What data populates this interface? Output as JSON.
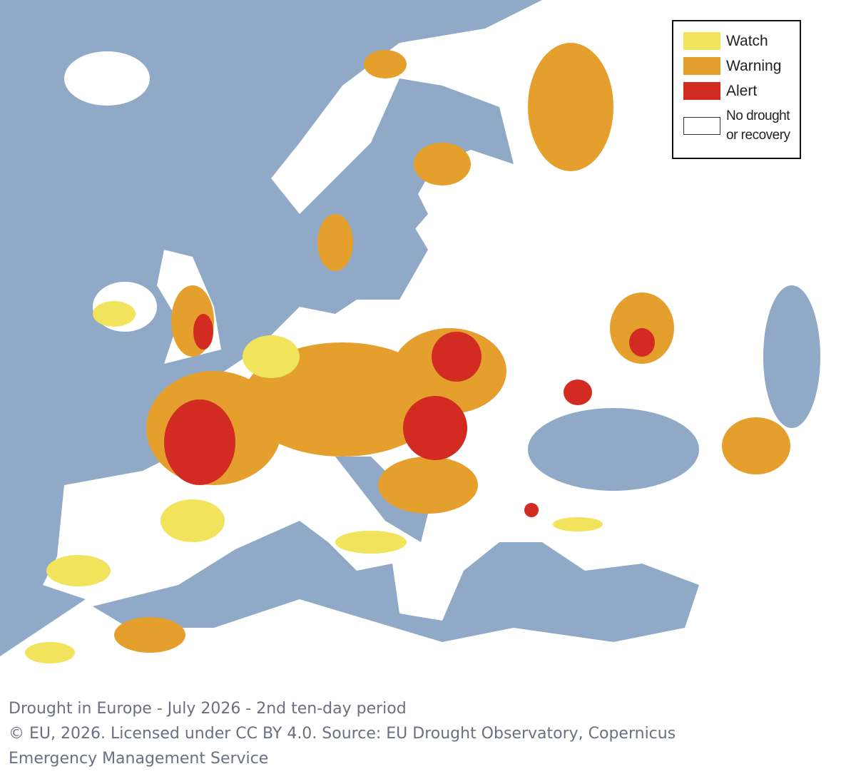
{
  "legend": {
    "items": [
      {
        "label": "Watch",
        "color": "#f1e35b"
      },
      {
        "label": "Warning",
        "color": "#e49f2c"
      },
      {
        "label": "Alert",
        "color": "#d22b21"
      },
      {
        "label": "No drought or recovery",
        "color": "#ffffff"
      }
    ]
  },
  "caption": {
    "title": "Drought in Europe - July 2026 - 2nd ten-day period",
    "credit": "© EU, 2026. Licensed under CC BY 4.0. Source: EU Drought Observatory, Copernicus Emergency Management Service"
  }
}
